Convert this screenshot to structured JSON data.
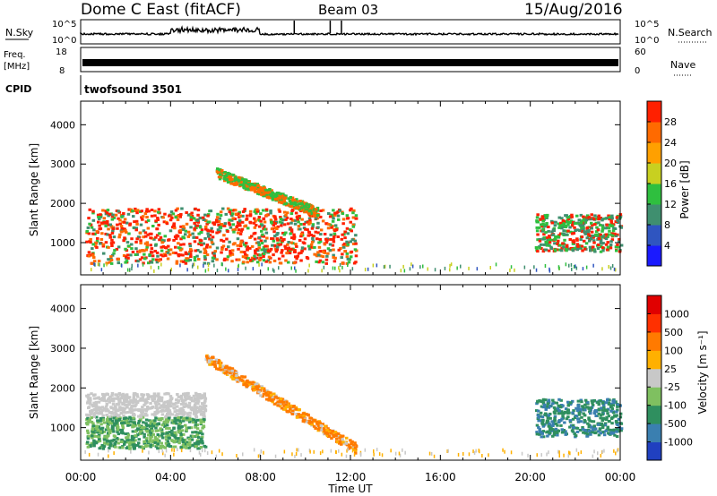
{
  "header": {
    "title": "Dome C East (fitACF)",
    "beam": "Beam 03",
    "date": "15/Aug/2016"
  },
  "top_panels": {
    "nsky_label": "N.Sky",
    "nsky_ticks": [
      "10^5",
      "10^0"
    ],
    "nsearch_label": "N.Search",
    "nsearch_ticks": [
      "10^5",
      "10^0"
    ],
    "freq_label": "Freq.",
    "freq_unit": "[MHz]",
    "freq_ticks": [
      "18",
      "8"
    ],
    "nave_label": "Nave",
    "nave_ticks": [
      "60",
      "0"
    ],
    "cpid_label": "CPID",
    "cpid_value": "twofsound 3501"
  },
  "chart_data": [
    {
      "type": "heatmap",
      "panel": "power",
      "ylabel": "Slant Range [km]",
      "xlabel": "Time UT",
      "x_ticks": [
        "00:00",
        "04:00",
        "08:00",
        "12:00",
        "16:00",
        "20:00",
        "00:00"
      ],
      "x_range_hours": [
        0,
        24
      ],
      "y_ticks": [
        "1000",
        "2000",
        "3000",
        "4000"
      ],
      "ylim": [
        180,
        4600
      ],
      "colorbar_label": "Power [dB]",
      "colorbar_ticks": [
        "4",
        "8",
        "12",
        "16",
        "20",
        "24",
        "28"
      ],
      "colorbar_colors": [
        "#1a1aff",
        "#2f55c0",
        "#3f8f6f",
        "#2fbf3f",
        "#c8d020",
        "#ffa000",
        "#ff6a00",
        "#ff2000"
      ],
      "echo_regions": [
        {
          "t0": 0.2,
          "t1": 12.2,
          "r0": 500,
          "r1": 1900,
          "level": "strong"
        },
        {
          "t0": 6.0,
          "t1": 10.5,
          "r0": 1800,
          "r1": 2800,
          "level": "medium"
        },
        {
          "t0": 20.2,
          "t1": 24.0,
          "r0": 800,
          "r1": 1750,
          "level": "mixed"
        }
      ]
    },
    {
      "type": "heatmap",
      "panel": "velocity",
      "ylabel": "Slant Range [km]",
      "xlabel": "Time UT",
      "x_ticks": [
        "00:00",
        "04:00",
        "08:00",
        "12:00",
        "16:00",
        "20:00",
        "00:00"
      ],
      "x_range_hours": [
        0,
        24
      ],
      "y_ticks": [
        "1000",
        "2000",
        "3000",
        "4000"
      ],
      "ylim": [
        180,
        4600
      ],
      "colorbar_label": "Velocity [m s⁻¹]",
      "colorbar_ticks": [
        "1000",
        "500",
        "100",
        "25",
        "-25",
        "-100",
        "-500",
        "-1000"
      ],
      "colorbar_colors": [
        "#2040c0",
        "#3a7fb0",
        "#2f8f5f",
        "#7fc060",
        "#c8c8c8",
        "#ffb000",
        "#ff7a00",
        "#ff3000",
        "#e00000"
      ],
      "echo_regions": [
        {
          "t0": 0.2,
          "t1": 5.5,
          "r0": 500,
          "r1": 1900,
          "sign": "away/grey"
        },
        {
          "t0": 5.5,
          "t1": 12.2,
          "r0": 500,
          "r1": 2800,
          "sign": "toward"
        },
        {
          "t0": 20.2,
          "t1": 24.0,
          "r0": 800,
          "r1": 1750,
          "sign": "away"
        }
      ]
    }
  ]
}
